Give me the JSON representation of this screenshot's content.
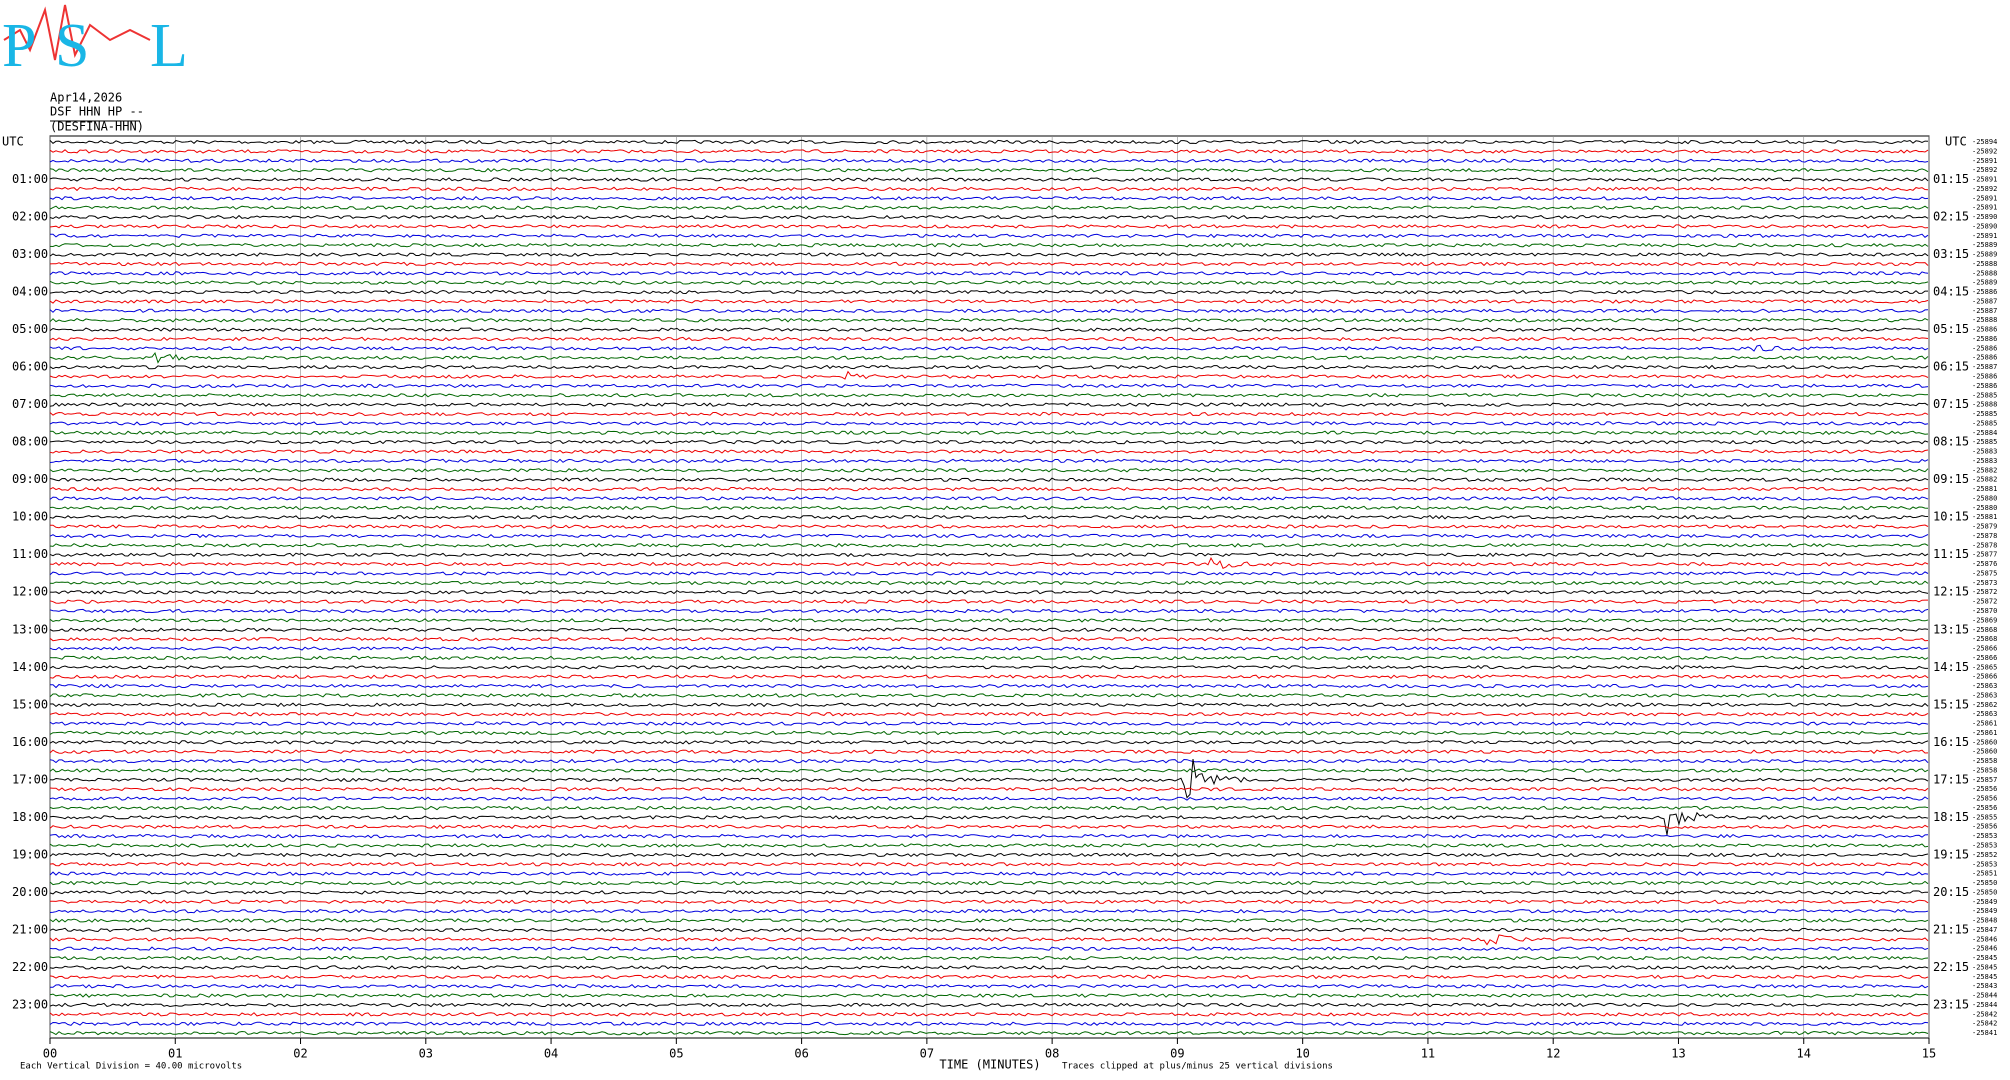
{
  "logo": {
    "letters": [
      "P",
      "S",
      "L"
    ]
  },
  "header": {
    "date": "Apr14,2026",
    "station": "DSF HHN HP --",
    "name": "(DESFINA-HHN)"
  },
  "axis": {
    "left_title": "UTC",
    "right_title": "UTC",
    "left_labels": [
      "01:00",
      "02:00",
      "03:00",
      "04:00",
      "05:00",
      "06:00",
      "07:00",
      "08:00",
      "09:00",
      "10:00",
      "11:00",
      "12:00",
      "13:00",
      "14:00",
      "15:00",
      "16:00",
      "17:00",
      "18:00",
      "19:00",
      "20:00",
      "21:00",
      "22:00",
      "23:00"
    ],
    "right_labels": [
      "01:15",
      "02:15",
      "03:15",
      "04:15",
      "05:15",
      "06:15",
      "07:15",
      "08:15",
      "09:15",
      "10:15",
      "11:15",
      "12:15",
      "13:15",
      "14:15",
      "15:15",
      "16:15",
      "17:15",
      "18:15",
      "19:15",
      "20:15",
      "21:15",
      "22:15",
      "23:15"
    ],
    "row_counts": [
      "-25894",
      "-25892",
      "-25891",
      "-25892",
      "-25891",
      "-25892",
      "-25891",
      "-25891",
      "-25890",
      "-25890",
      "-25891",
      "-25889",
      "-25889",
      "-25888",
      "-25888",
      "-25889",
      "-25886",
      "-25887",
      "-25887",
      "-25888",
      "-25886",
      "-25886",
      "-25886",
      "-25886",
      "-25887",
      "-25886",
      "-25886",
      "-25885",
      "-25888",
      "-25885",
      "-25885",
      "-25884",
      "-25885",
      "-25883",
      "-25883",
      "-25882",
      "-25882",
      "-25881",
      "-25880",
      "-25880",
      "-25881",
      "-25879",
      "-25878",
      "-25878",
      "-25877",
      "-25876",
      "-25875",
      "-25873",
      "-25872",
      "-25872",
      "-25870",
      "-25869",
      "-25868",
      "-25868",
      "-25866",
      "-25866",
      "-25865",
      "-25866",
      "-25863",
      "-25863",
      "-25862",
      "-25863",
      "-25861",
      "-25861",
      "-25860",
      "-25860",
      "-25858",
      "-25858",
      "-25857",
      "-25856",
      "-25856",
      "-25856",
      "-25855",
      "-25856",
      "-25853",
      "-25853",
      "-25852",
      "-25853",
      "-25851",
      "-25850",
      "-25850",
      "-25849",
      "-25849",
      "-25848",
      "-25847",
      "-25846",
      "-25846",
      "-25845",
      "-25845",
      "-25845",
      "-25843",
      "-25844",
      "-25844",
      "-25842",
      "-25842",
      "-25841"
    ],
    "minutes": [
      "00",
      "01",
      "02",
      "03",
      "04",
      "05",
      "06",
      "07",
      "08",
      "09",
      "10",
      "11",
      "12",
      "13",
      "14",
      "15"
    ],
    "x_title": "TIME (MINUTES)"
  },
  "footer": {
    "scale": "Each Vertical Division =  40.00 microvolts",
    "clip": "Traces clipped at plus/minus 25 vertical divisions"
  }
}
